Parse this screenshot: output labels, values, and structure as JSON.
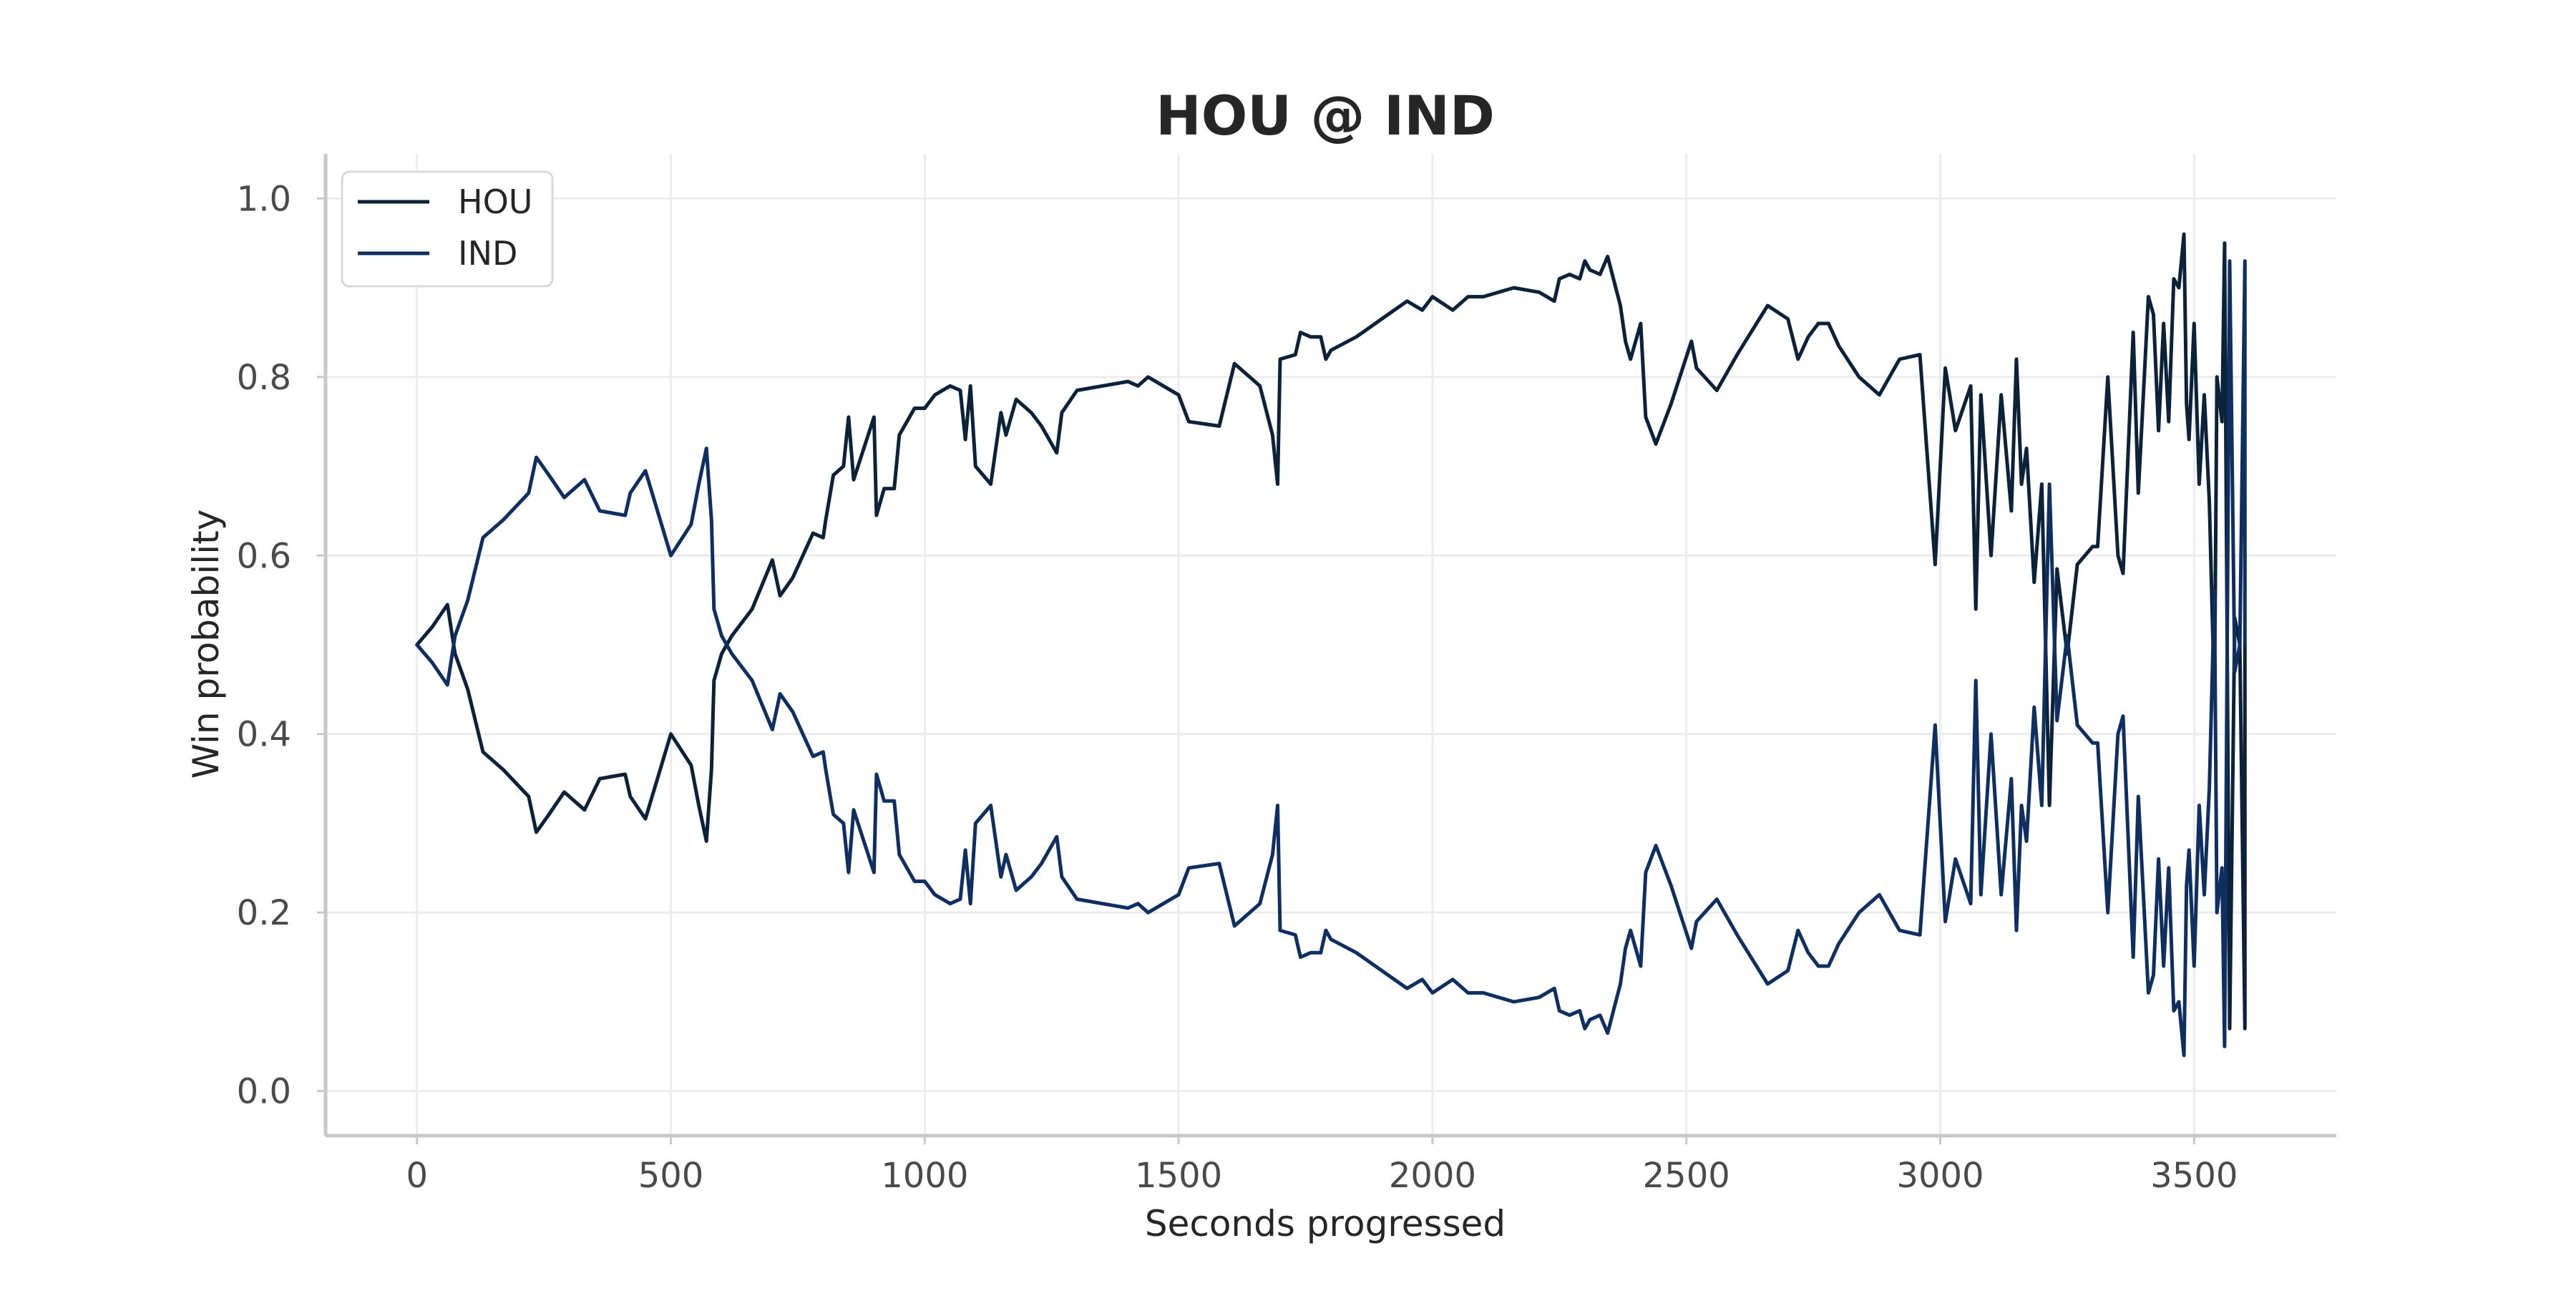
{
  "chart_data": {
    "type": "line",
    "title": "HOU @ IND",
    "xlabel": "Seconds progressed",
    "ylabel": "Win probability",
    "xlim": [
      -180,
      3780
    ],
    "ylim": [
      -0.05,
      1.05
    ],
    "xticks": [
      0,
      500,
      1000,
      1500,
      2000,
      2500,
      3000,
      3500
    ],
    "xtick_labels": [
      "0",
      "500",
      "1000",
      "1500",
      "2000",
      "2500",
      "3000",
      "3500"
    ],
    "yticks": [
      0.0,
      0.2,
      0.4,
      0.6,
      0.8,
      1.0
    ],
    "ytick_labels": [
      "0.0",
      "0.2",
      "0.4",
      "0.6",
      "0.8",
      "1.0"
    ],
    "grid": true,
    "legend_position": "top-left",
    "series": [
      {
        "name": "HOU",
        "color": "#0b2239",
        "x": [
          0,
          30,
          60,
          75,
          100,
          130,
          170,
          220,
          235,
          260,
          290,
          330,
          360,
          410,
          420,
          450,
          500,
          540,
          555,
          570,
          580,
          585,
          600,
          620,
          660,
          700,
          715,
          740,
          780,
          800,
          805,
          820,
          840,
          850,
          860,
          880,
          900,
          905,
          920,
          940,
          950,
          980,
          1000,
          1020,
          1050,
          1070,
          1080,
          1090,
          1100,
          1130,
          1145,
          1150,
          1160,
          1180,
          1210,
          1230,
          1260,
          1270,
          1300,
          1350,
          1400,
          1420,
          1440,
          1470,
          1500,
          1520,
          1580,
          1610,
          1660,
          1685,
          1695,
          1700,
          1730,
          1740,
          1760,
          1780,
          1790,
          1800,
          1850,
          1900,
          1950,
          1980,
          2000,
          2040,
          2070,
          2100,
          2160,
          2210,
          2240,
          2250,
          2270,
          2290,
          2300,
          2310,
          2330,
          2345,
          2370,
          2380,
          2390,
          2410,
          2420,
          2440,
          2470,
          2510,
          2520,
          2560,
          2600,
          2660,
          2700,
          2720,
          2740,
          2760,
          2780,
          2800,
          2840,
          2880,
          2920,
          2960,
          2990,
          3010,
          3030,
          3060,
          3070,
          3080,
          3100,
          3120,
          3140,
          3150,
          3160,
          3170,
          3185,
          3200,
          3215,
          3230,
          3250,
          3270,
          3300,
          3310,
          3330,
          3350,
          3360,
          3380,
          3390,
          3400,
          3410,
          3420,
          3430,
          3440,
          3450,
          3460,
          3470,
          3480,
          3485,
          3490,
          3500,
          3510,
          3520,
          3530,
          3540,
          3545,
          3555,
          3560,
          3570,
          3580,
          3590,
          3600,
          3600
        ],
        "values": [
          0.5,
          0.52,
          0.545,
          0.49,
          0.45,
          0.38,
          0.36,
          0.33,
          0.29,
          0.31,
          0.335,
          0.315,
          0.35,
          0.355,
          0.33,
          0.305,
          0.4,
          0.365,
          0.32,
          0.28,
          0.36,
          0.46,
          0.49,
          0.51,
          0.54,
          0.595,
          0.555,
          0.575,
          0.625,
          0.62,
          0.64,
          0.69,
          0.7,
          0.755,
          0.685,
          0.72,
          0.755,
          0.645,
          0.675,
          0.675,
          0.735,
          0.765,
          0.765,
          0.78,
          0.79,
          0.785,
          0.73,
          0.79,
          0.7,
          0.68,
          0.74,
          0.76,
          0.735,
          0.775,
          0.76,
          0.745,
          0.715,
          0.76,
          0.785,
          0.79,
          0.795,
          0.79,
          0.8,
          0.79,
          0.78,
          0.75,
          0.745,
          0.815,
          0.79,
          0.735,
          0.68,
          0.82,
          0.825,
          0.85,
          0.845,
          0.845,
          0.82,
          0.83,
          0.845,
          0.865,
          0.885,
          0.875,
          0.89,
          0.875,
          0.89,
          0.89,
          0.9,
          0.895,
          0.885,
          0.91,
          0.915,
          0.91,
          0.93,
          0.92,
          0.915,
          0.935,
          0.88,
          0.84,
          0.82,
          0.86,
          0.755,
          0.725,
          0.77,
          0.84,
          0.81,
          0.785,
          0.825,
          0.88,
          0.865,
          0.82,
          0.845,
          0.86,
          0.86,
          0.835,
          0.8,
          0.78,
          0.82,
          0.825,
          0.59,
          0.81,
          0.74,
          0.79,
          0.54,
          0.78,
          0.6,
          0.78,
          0.65,
          0.82,
          0.68,
          0.72,
          0.57,
          0.68,
          0.32,
          0.585,
          0.49,
          0.59,
          0.61,
          0.61,
          0.8,
          0.6,
          0.58,
          0.85,
          0.67,
          0.78,
          0.89,
          0.87,
          0.74,
          0.86,
          0.75,
          0.91,
          0.9,
          0.96,
          0.77,
          0.73,
          0.86,
          0.68,
          0.78,
          0.66,
          0.44,
          0.8,
          0.75,
          0.95,
          0.07,
          0.53,
          0.5,
          0.07,
          0.5
        ]
      },
      {
        "name": "IND",
        "color": "#0f2f61",
        "x": [
          0,
          30,
          60,
          75,
          100,
          130,
          170,
          220,
          235,
          260,
          290,
          330,
          360,
          410,
          420,
          450,
          500,
          540,
          555,
          570,
          580,
          585,
          600,
          620,
          660,
          700,
          715,
          740,
          780,
          800,
          805,
          820,
          840,
          850,
          860,
          880,
          900,
          905,
          920,
          940,
          950,
          980,
          1000,
          1020,
          1050,
          1070,
          1080,
          1090,
          1100,
          1130,
          1145,
          1150,
          1160,
          1180,
          1210,
          1230,
          1260,
          1270,
          1300,
          1350,
          1400,
          1420,
          1440,
          1470,
          1500,
          1520,
          1580,
          1610,
          1660,
          1685,
          1695,
          1700,
          1730,
          1740,
          1760,
          1780,
          1790,
          1800,
          1850,
          1900,
          1950,
          1980,
          2000,
          2040,
          2070,
          2100,
          2160,
          2210,
          2240,
          2250,
          2270,
          2290,
          2300,
          2310,
          2330,
          2345,
          2370,
          2380,
          2390,
          2410,
          2420,
          2440,
          2470,
          2510,
          2520,
          2560,
          2600,
          2660,
          2700,
          2720,
          2740,
          2760,
          2780,
          2800,
          2840,
          2880,
          2920,
          2960,
          2990,
          3010,
          3030,
          3060,
          3070,
          3080,
          3100,
          3120,
          3140,
          3150,
          3160,
          3170,
          3185,
          3200,
          3215,
          3230,
          3250,
          3270,
          3300,
          3310,
          3330,
          3350,
          3360,
          3380,
          3390,
          3400,
          3410,
          3420,
          3430,
          3440,
          3450,
          3460,
          3470,
          3480,
          3485,
          3490,
          3500,
          3510,
          3520,
          3530,
          3540,
          3545,
          3555,
          3560,
          3570,
          3580,
          3590,
          3600,
          3600
        ],
        "values": [
          0.5,
          0.48,
          0.455,
          0.51,
          0.55,
          0.62,
          0.64,
          0.67,
          0.71,
          0.69,
          0.665,
          0.685,
          0.65,
          0.645,
          0.67,
          0.695,
          0.6,
          0.635,
          0.68,
          0.72,
          0.64,
          0.54,
          0.51,
          0.49,
          0.46,
          0.405,
          0.445,
          0.425,
          0.375,
          0.38,
          0.36,
          0.31,
          0.3,
          0.245,
          0.315,
          0.28,
          0.245,
          0.355,
          0.325,
          0.325,
          0.265,
          0.235,
          0.235,
          0.22,
          0.21,
          0.215,
          0.27,
          0.21,
          0.3,
          0.32,
          0.26,
          0.24,
          0.265,
          0.225,
          0.24,
          0.255,
          0.285,
          0.24,
          0.215,
          0.21,
          0.205,
          0.21,
          0.2,
          0.21,
          0.22,
          0.25,
          0.255,
          0.185,
          0.21,
          0.265,
          0.32,
          0.18,
          0.175,
          0.15,
          0.155,
          0.155,
          0.18,
          0.17,
          0.155,
          0.135,
          0.115,
          0.125,
          0.11,
          0.125,
          0.11,
          0.11,
          0.1,
          0.105,
          0.115,
          0.09,
          0.085,
          0.09,
          0.07,
          0.08,
          0.085,
          0.065,
          0.12,
          0.16,
          0.18,
          0.14,
          0.245,
          0.275,
          0.23,
          0.16,
          0.19,
          0.215,
          0.175,
          0.12,
          0.135,
          0.18,
          0.155,
          0.14,
          0.14,
          0.165,
          0.2,
          0.22,
          0.18,
          0.175,
          0.41,
          0.19,
          0.26,
          0.21,
          0.46,
          0.22,
          0.4,
          0.22,
          0.35,
          0.18,
          0.32,
          0.28,
          0.43,
          0.32,
          0.68,
          0.415,
          0.51,
          0.41,
          0.39,
          0.39,
          0.2,
          0.4,
          0.42,
          0.15,
          0.33,
          0.22,
          0.11,
          0.13,
          0.26,
          0.14,
          0.25,
          0.09,
          0.1,
          0.04,
          0.23,
          0.27,
          0.14,
          0.32,
          0.22,
          0.34,
          0.56,
          0.2,
          0.25,
          0.05,
          0.93,
          0.47,
          0.5,
          0.93,
          0.5
        ]
      }
    ]
  }
}
